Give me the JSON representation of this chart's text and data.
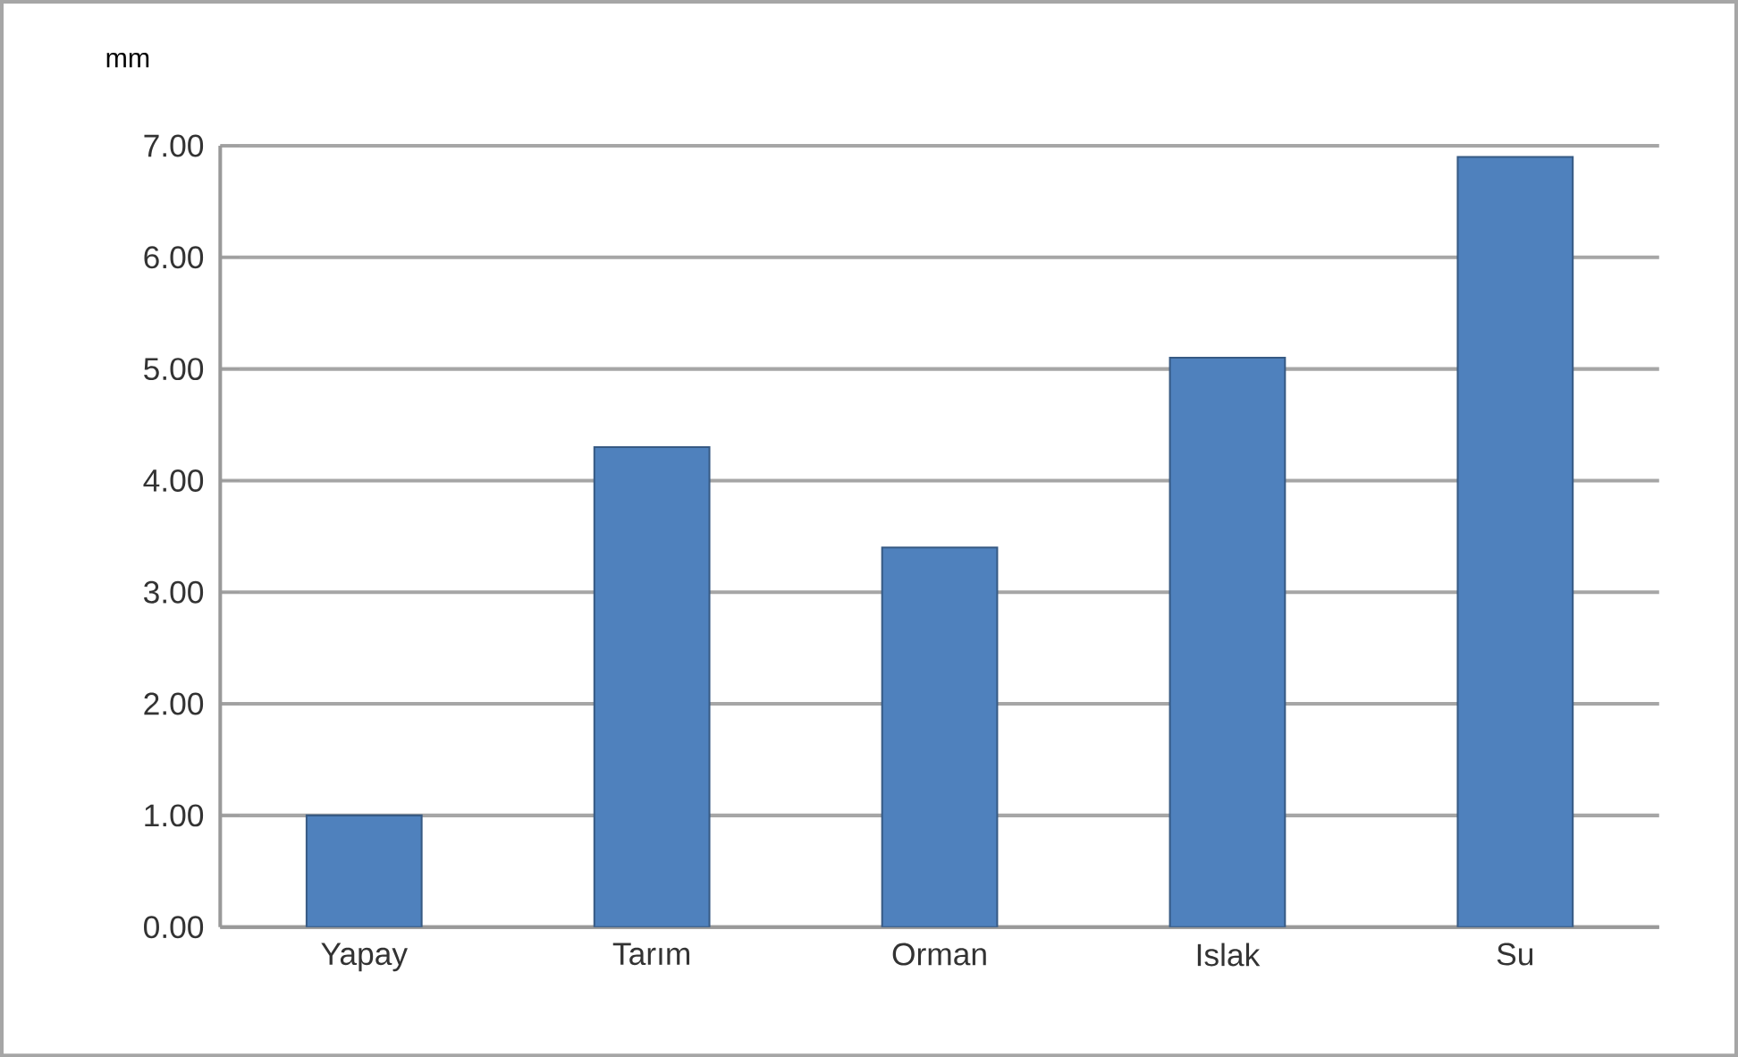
{
  "chart_data": {
    "type": "bar",
    "ylabel": "mm",
    "categories": [
      "Yapay",
      "Tarım",
      "Orman",
      "Islak",
      "Su"
    ],
    "values": [
      1.0,
      4.3,
      3.4,
      5.1,
      6.9
    ],
    "color": "#4f81bd",
    "ylim": [
      0,
      7
    ],
    "yticks": [
      {
        "value": 0,
        "label": "0.00"
      },
      {
        "value": 1,
        "label": "1.00"
      },
      {
        "value": 2,
        "label": "2.00"
      },
      {
        "value": 3,
        "label": "3.00"
      },
      {
        "value": 4,
        "label": "4.00"
      },
      {
        "value": 5,
        "label": "5.00"
      },
      {
        "value": 6,
        "label": "6.00"
      },
      {
        "value": 7,
        "label": "7.00"
      }
    ],
    "grid": "y"
  }
}
